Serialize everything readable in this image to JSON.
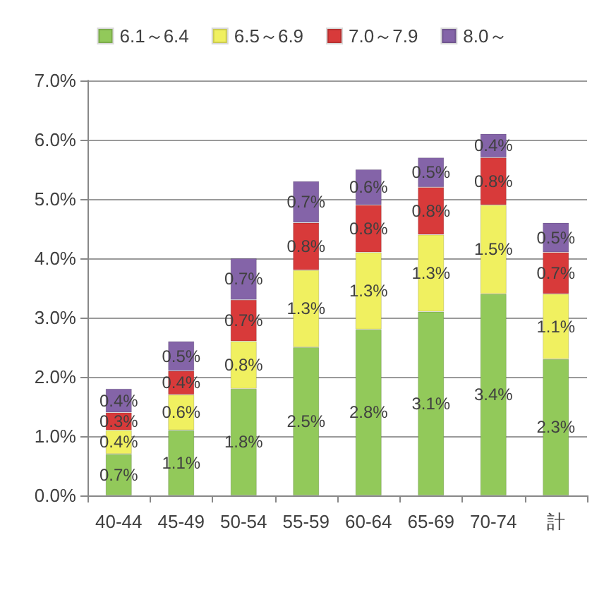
{
  "chart_data": {
    "type": "bar",
    "stacked": true,
    "legend": "top",
    "grid": "y",
    "categories": [
      "40-44",
      "45-49",
      "50-54",
      "55-59",
      "60-64",
      "65-69",
      "70-74",
      "計"
    ],
    "ylim": [
      0,
      7
    ],
    "yticks": [
      {
        "value": 0,
        "label": "0.0%"
      },
      {
        "value": 1,
        "label": "1.0%"
      },
      {
        "value": 2,
        "label": "2.0%"
      },
      {
        "value": 3,
        "label": "3.0%"
      },
      {
        "value": 4,
        "label": "4.0%"
      },
      {
        "value": 5,
        "label": "5.0%"
      },
      {
        "value": 6,
        "label": "6.0%"
      },
      {
        "value": 7,
        "label": "7.0%"
      }
    ],
    "series": [
      {
        "name": "6.1～6.4",
        "color": "#92c95a",
        "values": [
          0.7,
          1.1,
          1.8,
          2.5,
          2.8,
          3.1,
          3.4,
          2.3
        ],
        "value_labels": [
          "0.7%",
          "1.1%",
          "1.8%",
          "2.5%",
          "2.8%",
          "3.1%",
          "3.4%",
          "2.3%"
        ]
      },
      {
        "name": "6.5～6.9",
        "color": "#f0f060",
        "values": [
          0.4,
          0.6,
          0.8,
          1.3,
          1.3,
          1.3,
          1.5,
          1.1
        ],
        "value_labels": [
          "0.4%",
          "0.6%",
          "0.8%",
          "1.3%",
          "1.3%",
          "1.3%",
          "1.5%",
          "1.1%"
        ]
      },
      {
        "name": "7.0～7.9",
        "color": "#d83a3a",
        "values": [
          0.3,
          0.4,
          0.7,
          0.8,
          0.8,
          0.8,
          0.8,
          0.7
        ],
        "value_labels": [
          "0.3%",
          "0.4%",
          "0.7%",
          "0.8%",
          "0.8%",
          "0.8%",
          "0.8%",
          "0.7%"
        ]
      },
      {
        "name": "8.0～",
        "color": "#8464a8",
        "values": [
          0.4,
          0.5,
          0.7,
          0.7,
          0.6,
          0.5,
          0.4,
          0.5
        ],
        "value_labels": [
          "0.4%",
          "0.5%",
          "0.7%",
          "0.7%",
          "0.6%",
          "0.5%",
          "0.4%",
          "0.5%"
        ]
      }
    ]
  }
}
